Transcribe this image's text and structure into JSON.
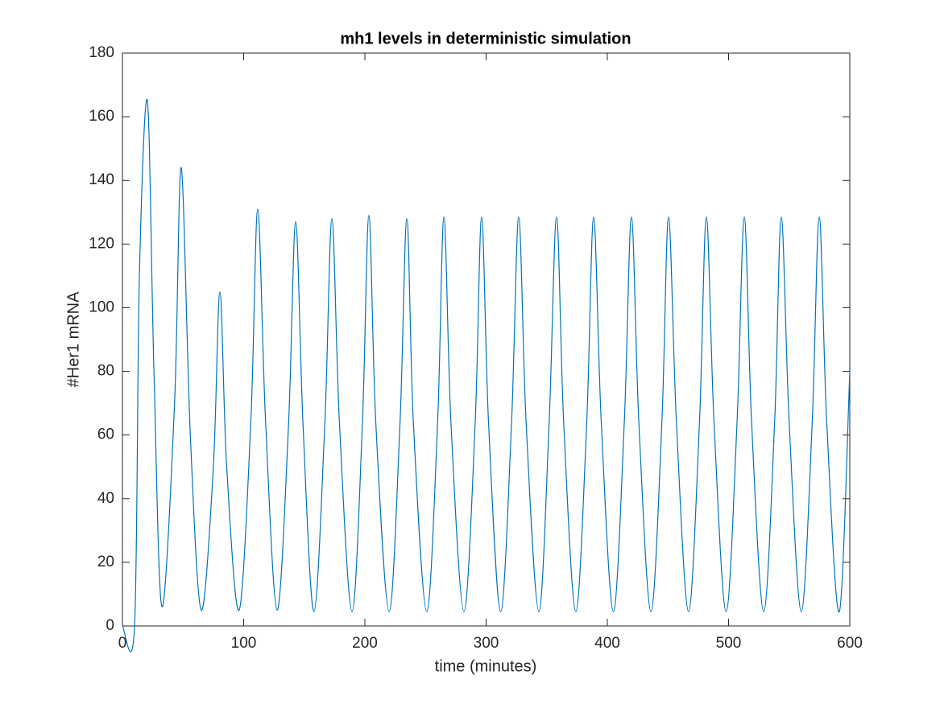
{
  "chart_data": {
    "type": "line",
    "title": "mh1 levels in deterministic simulation",
    "xlabel": "time (minutes)",
    "ylabel": "#Her1 mRNA",
    "color": "#0072bd",
    "x": [
      0,
      10,
      14,
      20.6,
      26,
      32.6,
      43,
      48.5,
      56,
      65,
      75,
      80.4,
      86,
      96.3,
      106,
      111.6,
      118,
      127.6,
      137,
      142.9,
      149,
      158,
      167,
      172.8,
      179,
      189.4,
      198,
      203.3,
      209,
      220,
      229,
      234.6,
      240,
      251,
      260,
      265.2,
      271,
      281.7,
      291,
      296.3,
      302,
      312,
      321,
      326.9,
      333,
      343.5,
      352,
      358.1,
      364,
      374,
      383,
      388.7,
      395,
      405,
      414,
      419.9,
      426,
      436,
      445,
      450.5,
      457,
      467,
      476,
      481.7,
      488,
      498,
      507,
      513,
      519,
      529,
      538,
      543.5,
      550,
      560,
      569,
      574.8,
      581,
      591.4,
      600
    ],
    "values": [
      0,
      0,
      110,
      165,
      80,
      6,
      70,
      144,
      60,
      5,
      50,
      105,
      50,
      5,
      65,
      131,
      65,
      5,
      63,
      127,
      63,
      4.5,
      64,
      128,
      64,
      4.5,
      64,
      129,
      64,
      4.5,
      64,
      128,
      64,
      4.5,
      64,
      128.5,
      64,
      4.5,
      64,
      128.5,
      64,
      4.5,
      64,
      128.5,
      64,
      4.5,
      64,
      128.5,
      64,
      4.5,
      64,
      128.5,
      64,
      4.5,
      64,
      128.5,
      64,
      4.5,
      64,
      128.5,
      64,
      4.5,
      64,
      128.5,
      64,
      4.5,
      64,
      128.5,
      64,
      4.5,
      64,
      128.5,
      64,
      4.5,
      64,
      128.5,
      64,
      4.5,
      80
    ],
    "xlim": [
      0,
      600
    ],
    "xticks": [
      0,
      100,
      200,
      300,
      400,
      500,
      600
    ],
    "ylim": [
      0,
      180
    ],
    "yticks": [
      0,
      20,
      40,
      60,
      80,
      100,
      120,
      140,
      160,
      180
    ]
  }
}
